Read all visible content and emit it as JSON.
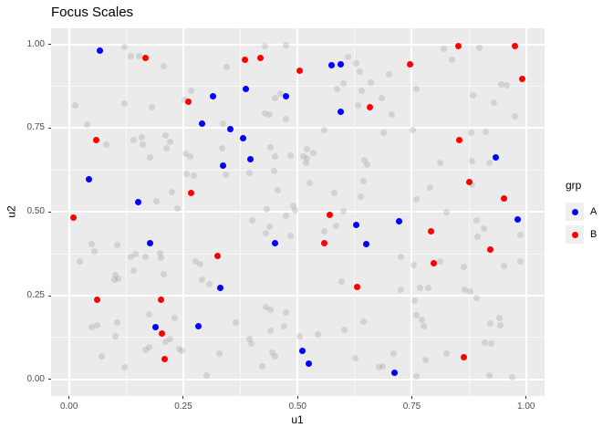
{
  "title": "Focus Scales",
  "legend": {
    "title": "grp",
    "entries": [
      {
        "label": "A",
        "color": "#0000FF"
      },
      {
        "label": "B",
        "color": "#FF0000"
      }
    ]
  },
  "colors": {
    "panel_background": "#EBEBEB",
    "gridline": "#FFFFFF",
    "axis_text": "#4D4D4D",
    "tick_mark": "#333333",
    "title_text": "#000000",
    "focus_a": "#0000FF",
    "focus_b": "#FF0000",
    "other_points": "rgba(160,160,160,0.32)"
  },
  "chart_data": {
    "type": "scatter",
    "title": "Focus Scales",
    "xlabel": "u1",
    "ylabel": "u2",
    "xlim": [
      -0.0393,
      1.0404
    ],
    "ylim": [
      -0.0495,
      1.0478
    ],
    "x_ticks": [
      0,
      0.25,
      0.5,
      0.75,
      1.0
    ],
    "y_ticks": [
      0,
      0.25,
      0.5,
      0.75,
      1.0
    ],
    "x_tick_labels": [
      "0.00",
      "0.25",
      "0.50",
      "0.75",
      "1.00"
    ],
    "y_tick_labels": [
      "0.00",
      "0.25",
      "0.50",
      "0.75",
      "1.00"
    ],
    "x_minor_ticks": [
      0.125,
      0.375,
      0.625,
      0.875
    ],
    "y_minor_ticks": [
      0.125,
      0.375,
      0.625,
      0.875
    ],
    "grid": "on",
    "legend_position": "right",
    "series": [
      {
        "name": "other",
        "color": "rgba(160,160,160,0.32)",
        "size": 7,
        "points": [
          [
            0.122,
            0.993
          ],
          [
            0.135,
            0.966
          ],
          [
            0.153,
            0.964
          ],
          [
            0.208,
            0.936
          ],
          [
            0.345,
            0.933
          ],
          [
            0.428,
            0.996
          ],
          [
            0.474,
            0.998
          ],
          [
            0.014,
            0.817
          ],
          [
            0.039,
            0.761
          ],
          [
            0.122,
            0.823
          ],
          [
            0.182,
            0.813
          ],
          [
            0.254,
            0.835
          ],
          [
            0.267,
            0.86
          ],
          [
            0.611,
            0.962
          ],
          [
            0.629,
            0.942
          ],
          [
            0.636,
            0.919
          ],
          [
            0.819,
            0.987
          ],
          [
            0.837,
            0.955
          ],
          [
            0.897,
            0.989
          ],
          [
            0.6,
            0.883
          ],
          [
            0.587,
            0.867
          ],
          [
            0.661,
            0.886
          ],
          [
            0.641,
            0.86
          ],
          [
            0.684,
            0.84
          ],
          [
            0.701,
            0.91
          ],
          [
            0.76,
            0.867
          ],
          [
            0.945,
            0.88
          ],
          [
            0.957,
            0.878
          ],
          [
            0.883,
            0.849
          ],
          [
            0.93,
            0.826
          ],
          [
            0.451,
            0.84
          ],
          [
            0.462,
            0.853
          ],
          [
            0.633,
            0.819
          ],
          [
            0.975,
            0.786
          ],
          [
            0.707,
            0.79
          ],
          [
            0.082,
            0.701
          ],
          [
            0.142,
            0.713
          ],
          [
            0.16,
            0.722
          ],
          [
            0.162,
            0.7
          ],
          [
            0.212,
            0.727
          ],
          [
            0.222,
            0.71
          ],
          [
            0.214,
            0.69
          ],
          [
            0.178,
            0.663
          ],
          [
            0.255,
            0.674
          ],
          [
            0.265,
            0.665
          ],
          [
            0.257,
            0.613
          ],
          [
            0.273,
            0.609
          ],
          [
            0.225,
            0.559
          ],
          [
            0.192,
            0.532
          ],
          [
            0.238,
            0.509
          ],
          [
            0.336,
            0.764
          ],
          [
            0.428,
            0.794
          ],
          [
            0.438,
            0.791
          ],
          [
            0.474,
            0.776
          ],
          [
            0.558,
            0.743
          ],
          [
            0.334,
            0.689
          ],
          [
            0.441,
            0.692
          ],
          [
            0.451,
            0.665
          ],
          [
            0.484,
            0.668
          ],
          [
            0.513,
            0.665
          ],
          [
            0.521,
            0.661
          ],
          [
            0.518,
            0.647
          ],
          [
            0.343,
            0.611
          ],
          [
            0.448,
            0.622
          ],
          [
            0.456,
            0.565
          ],
          [
            0.526,
            0.586
          ],
          [
            0.394,
            0.616
          ],
          [
            0.432,
            0.507
          ],
          [
            0.52,
            0.686
          ],
          [
            0.534,
            0.677
          ],
          [
            0.646,
            0.654
          ],
          [
            0.652,
            0.641
          ],
          [
            0.644,
            0.593
          ],
          [
            0.639,
            0.545
          ],
          [
            0.689,
            0.735
          ],
          [
            0.752,
            0.743
          ],
          [
            0.879,
            0.737
          ],
          [
            0.911,
            0.739
          ],
          [
            0.812,
            0.647
          ],
          [
            0.882,
            0.652
          ],
          [
            0.919,
            0.645
          ],
          [
            0.58,
            0.555
          ],
          [
            0.789,
            0.573
          ],
          [
            0.882,
            0.582
          ],
          [
            0.759,
            0.537
          ],
          [
            0.826,
            0.5
          ],
          [
            0.491,
            0.518
          ],
          [
            0.494,
            0.505
          ],
          [
            0.474,
            0.489
          ],
          [
            0.601,
            0.502
          ],
          [
            0.401,
            0.475
          ],
          [
            0.584,
            0.459
          ],
          [
            0.558,
            0.441
          ],
          [
            0.431,
            0.437
          ],
          [
            0.438,
            0.455
          ],
          [
            0.484,
            0.428
          ],
          [
            0.892,
            0.476
          ],
          [
            0.907,
            0.451
          ],
          [
            0.893,
            0.425
          ],
          [
            0.988,
            0.431
          ],
          [
            0.049,
            0.403
          ],
          [
            0.105,
            0.401
          ],
          [
            0.055,
            0.381
          ],
          [
            0.135,
            0.365
          ],
          [
            0.145,
            0.375
          ],
          [
            0.168,
            0.366
          ],
          [
            0.2,
            0.376
          ],
          [
            0.202,
            0.363
          ],
          [
            0.024,
            0.353
          ],
          [
            0.278,
            0.351
          ],
          [
            0.288,
            0.344
          ],
          [
            0.306,
            0.285
          ],
          [
            0.29,
            0.299
          ],
          [
            0.102,
            0.31
          ],
          [
            0.108,
            0.301
          ],
          [
            0.099,
            0.297
          ],
          [
            0.142,
            0.324
          ],
          [
            0.208,
            0.315
          ],
          [
            0.597,
            0.293
          ],
          [
            0.727,
            0.365
          ],
          [
            0.754,
            0.342
          ],
          [
            0.812,
            0.352
          ],
          [
            0.863,
            0.335
          ],
          [
            0.952,
            0.339
          ],
          [
            0.988,
            0.351
          ],
          [
            0.726,
            0.267
          ],
          [
            0.768,
            0.272
          ],
          [
            0.786,
            0.272
          ],
          [
            0.866,
            0.269
          ],
          [
            0.877,
            0.263
          ],
          [
            0.892,
            0.242
          ],
          [
            0.757,
            0.236
          ],
          [
            0.759,
            0.191
          ],
          [
            0.772,
            0.179
          ],
          [
            0.776,
            0.159
          ],
          [
            0.921,
            0.168
          ],
          [
            0.941,
            0.183
          ],
          [
            0.943,
            0.161
          ],
          [
            0.431,
            0.215
          ],
          [
            0.441,
            0.209
          ],
          [
            0.474,
            0.2
          ],
          [
            0.47,
            0.159
          ],
          [
            0.441,
            0.145
          ],
          [
            0.364,
            0.17
          ],
          [
            0.175,
            0.194
          ],
          [
            0.232,
            0.184
          ],
          [
            0.049,
            0.156
          ],
          [
            0.062,
            0.161
          ],
          [
            0.105,
            0.17
          ],
          [
            0.102,
            0.129
          ],
          [
            0.212,
            0.113
          ],
          [
            0.222,
            0.122
          ],
          [
            0.168,
            0.088
          ],
          [
            0.175,
            0.095
          ],
          [
            0.242,
            0.091
          ],
          [
            0.248,
            0.084
          ],
          [
            0.072,
            0.07
          ],
          [
            0.122,
            0.037
          ],
          [
            0.394,
            0.12
          ],
          [
            0.398,
            0.108
          ],
          [
            0.328,
            0.077
          ],
          [
            0.444,
            0.079
          ],
          [
            0.451,
            0.07
          ],
          [
            0.422,
            0.039
          ],
          [
            0.301,
            0.013
          ],
          [
            0.644,
            0.172
          ],
          [
            0.602,
            0.147
          ],
          [
            0.544,
            0.133
          ],
          [
            0.505,
            0.13
          ],
          [
            0.627,
            0.064
          ],
          [
            0.679,
            0.035
          ],
          [
            0.687,
            0.038
          ],
          [
            0.711,
            0.077
          ],
          [
            0.826,
            0.077
          ],
          [
            0.78,
            0.057
          ],
          [
            0.76,
            0.009
          ],
          [
            0.92,
            0.012
          ],
          [
            0.97,
            0.007
          ],
          [
            0.91,
            0.111
          ],
          [
            0.923,
            0.106
          ]
        ]
      },
      {
        "name": "A",
        "color": "#0000FF",
        "size": 7,
        "points": [
          [
            0.068,
            0.98
          ],
          [
            0.044,
            0.597
          ],
          [
            0.152,
            0.53
          ],
          [
            0.315,
            0.845
          ],
          [
            0.291,
            0.762
          ],
          [
            0.386,
            0.866
          ],
          [
            0.353,
            0.748
          ],
          [
            0.38,
            0.72
          ],
          [
            0.397,
            0.656
          ],
          [
            0.337,
            0.638
          ],
          [
            0.474,
            0.844
          ],
          [
            0.574,
            0.938
          ],
          [
            0.595,
            0.939
          ],
          [
            0.595,
            0.8
          ],
          [
            0.934,
            0.663
          ],
          [
            0.178,
            0.406
          ],
          [
            0.451,
            0.407
          ],
          [
            0.33,
            0.273
          ],
          [
            0.19,
            0.155
          ],
          [
            0.283,
            0.16
          ],
          [
            0.511,
            0.086
          ],
          [
            0.629,
            0.46
          ],
          [
            0.722,
            0.472
          ],
          [
            0.65,
            0.403
          ],
          [
            0.982,
            0.478
          ],
          [
            0.525,
            0.047
          ],
          [
            0.712,
            0.02
          ]
        ]
      },
      {
        "name": "B",
        "color": "#FF0000",
        "size": 7,
        "points": [
          [
            0.168,
            0.958
          ],
          [
            0.384,
            0.953
          ],
          [
            0.418,
            0.959
          ],
          [
            0.504,
            0.922
          ],
          [
            0.261,
            0.828
          ],
          [
            0.06,
            0.713
          ],
          [
            0.267,
            0.555
          ],
          [
            0.01,
            0.482
          ],
          [
            0.852,
            0.995
          ],
          [
            0.975,
            0.995
          ],
          [
            0.746,
            0.941
          ],
          [
            0.992,
            0.897
          ],
          [
            0.659,
            0.813
          ],
          [
            0.853,
            0.713
          ],
          [
            0.876,
            0.588
          ],
          [
            0.951,
            0.541
          ],
          [
            0.061,
            0.238
          ],
          [
            0.201,
            0.238
          ],
          [
            0.203,
            0.138
          ],
          [
            0.21,
            0.061
          ],
          [
            0.325,
            0.368
          ],
          [
            0.571,
            0.49
          ],
          [
            0.558,
            0.407
          ],
          [
            0.792,
            0.441
          ],
          [
            0.922,
            0.387
          ],
          [
            0.797,
            0.346
          ],
          [
            0.63,
            0.276
          ],
          [
            0.863,
            0.066
          ]
        ]
      }
    ]
  }
}
